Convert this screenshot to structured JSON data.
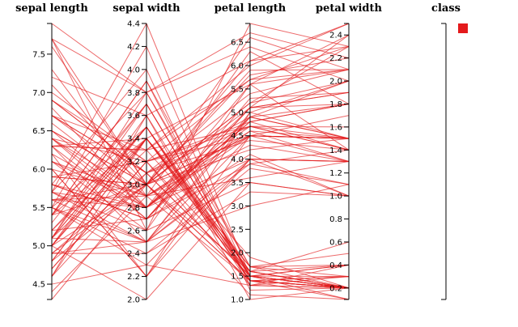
{
  "chart_data": {
    "type": "parallel_coordinates",
    "line_color": "#e41a1c",
    "dimensions": [
      {
        "name": "sepal length",
        "range": [
          4.3,
          7.9
        ],
        "ticks": [
          4.5,
          5.0,
          5.5,
          6.0,
          6.5,
          7.0,
          7.5
        ],
        "tick_labels": [
          "4.5",
          "5.0",
          "5.5",
          "6.0",
          "6.5",
          "7.0",
          "7.5"
        ]
      },
      {
        "name": "sepal width",
        "range": [
          2.0,
          4.4
        ],
        "ticks": [
          2.0,
          2.2,
          2.4,
          2.6,
          2.8,
          3.0,
          3.2,
          3.4,
          3.6,
          3.8,
          4.0,
          4.2,
          4.4
        ],
        "tick_labels": [
          "2.0",
          "2.2",
          "2.4",
          "2.6",
          "2.8",
          "3.0",
          "3.2",
          "3.4",
          "3.6",
          "3.8",
          "4.0",
          "4.2",
          "4.4"
        ]
      },
      {
        "name": "petal length",
        "range": [
          1.0,
          6.9
        ],
        "ticks": [
          1.0,
          1.5,
          2.0,
          2.5,
          3.0,
          3.5,
          4.0,
          4.5,
          5.0,
          5.5,
          6.0,
          6.5
        ],
        "tick_labels": [
          "1.0",
          "1.5",
          "2.0",
          "2.5",
          "3.0",
          "3.5",
          "4.0",
          "4.5",
          "5.0",
          "5.5",
          "6.0",
          "6.5"
        ]
      },
      {
        "name": "petal width",
        "range": [
          0.1,
          2.5
        ],
        "ticks": [
          0.2,
          0.4,
          0.6,
          0.8,
          1.0,
          1.2,
          1.4,
          1.6,
          1.8,
          2.0,
          2.2,
          2.4
        ],
        "tick_labels": [
          "0.2",
          "0.4",
          "0.6",
          "0.8",
          "1.0",
          "1.2",
          "1.4",
          "1.6",
          "1.8",
          "2.0",
          "2.2",
          "2.4"
        ]
      },
      {
        "name": "class",
        "range": [
          0,
          1
        ],
        "ticks": [],
        "tick_labels": []
      }
    ],
    "records": [
      [
        5.1,
        3.5,
        1.4,
        0.2
      ],
      [
        4.9,
        3.0,
        1.4,
        0.2
      ],
      [
        4.7,
        3.2,
        1.3,
        0.2
      ],
      [
        4.6,
        3.1,
        1.5,
        0.2
      ],
      [
        5.0,
        3.6,
        1.4,
        0.2
      ],
      [
        5.4,
        3.9,
        1.7,
        0.4
      ],
      [
        4.6,
        3.4,
        1.4,
        0.3
      ],
      [
        5.0,
        3.4,
        1.5,
        0.2
      ],
      [
        4.4,
        2.9,
        1.4,
        0.2
      ],
      [
        4.9,
        3.1,
        1.5,
        0.1
      ],
      [
        5.4,
        3.7,
        1.5,
        0.2
      ],
      [
        4.8,
        3.4,
        1.6,
        0.2
      ],
      [
        4.8,
        3.0,
        1.4,
        0.1
      ],
      [
        4.3,
        3.0,
        1.1,
        0.1
      ],
      [
        5.8,
        4.0,
        1.2,
        0.2
      ],
      [
        5.7,
        4.4,
        1.5,
        0.4
      ],
      [
        5.4,
        3.9,
        1.3,
        0.4
      ],
      [
        5.1,
        3.5,
        1.4,
        0.3
      ],
      [
        5.7,
        3.8,
        1.7,
        0.3
      ],
      [
        5.1,
        3.8,
        1.5,
        0.3
      ],
      [
        5.4,
        3.4,
        1.7,
        0.2
      ],
      [
        5.1,
        3.7,
        1.5,
        0.4
      ],
      [
        4.6,
        3.6,
        1.0,
        0.2
      ],
      [
        5.1,
        3.3,
        1.7,
        0.5
      ],
      [
        4.8,
        3.4,
        1.9,
        0.2
      ],
      [
        5.0,
        3.0,
        1.6,
        0.2
      ],
      [
        5.0,
        3.4,
        1.6,
        0.4
      ],
      [
        5.2,
        3.5,
        1.5,
        0.2
      ],
      [
        5.2,
        3.4,
        1.4,
        0.2
      ],
      [
        4.7,
        3.2,
        1.6,
        0.2
      ],
      [
        5.5,
        4.2,
        1.4,
        0.2
      ],
      [
        5.5,
        3.5,
        1.3,
        0.2
      ],
      [
        4.5,
        2.3,
        1.3,
        0.3
      ],
      [
        5.0,
        3.5,
        1.6,
        0.6
      ],
      [
        5.3,
        3.7,
        1.5,
        0.2
      ],
      [
        7.0,
        3.2,
        4.7,
        1.4
      ],
      [
        6.4,
        3.2,
        4.5,
        1.5
      ],
      [
        6.9,
        3.1,
        4.9,
        1.5
      ],
      [
        5.5,
        2.3,
        4.0,
        1.3
      ],
      [
        6.5,
        2.8,
        4.6,
        1.5
      ],
      [
        5.7,
        2.8,
        4.5,
        1.3
      ],
      [
        6.3,
        3.3,
        4.7,
        1.6
      ],
      [
        4.9,
        2.4,
        3.3,
        1.0
      ],
      [
        6.6,
        2.9,
        4.6,
        1.3
      ],
      [
        5.2,
        2.7,
        3.9,
        1.4
      ],
      [
        5.0,
        2.0,
        3.5,
        1.0
      ],
      [
        5.9,
        3.0,
        4.2,
        1.5
      ],
      [
        6.0,
        2.2,
        4.0,
        1.0
      ],
      [
        6.1,
        2.9,
        4.7,
        1.4
      ],
      [
        5.6,
        2.9,
        3.6,
        1.3
      ],
      [
        6.7,
        3.1,
        4.4,
        1.4
      ],
      [
        5.6,
        3.0,
        4.5,
        1.5
      ],
      [
        5.8,
        2.7,
        4.1,
        1.0
      ],
      [
        6.2,
        2.2,
        4.5,
        1.5
      ],
      [
        5.6,
        2.5,
        3.9,
        1.1
      ],
      [
        5.9,
        3.2,
        4.8,
        1.8
      ],
      [
        6.1,
        2.8,
        4.0,
        1.3
      ],
      [
        6.3,
        2.5,
        4.9,
        1.5
      ],
      [
        6.4,
        2.9,
        4.3,
        1.3
      ],
      [
        6.8,
        2.8,
        4.8,
        1.4
      ],
      [
        6.0,
        2.9,
        4.5,
        1.5
      ],
      [
        5.7,
        2.6,
        3.5,
        1.0
      ],
      [
        5.5,
        2.4,
        3.8,
        1.1
      ],
      [
        5.4,
        3.0,
        4.5,
        1.5
      ],
      [
        6.7,
        3.1,
        4.7,
        1.5
      ],
      [
        5.5,
        2.5,
        4.0,
        1.3
      ],
      [
        5.1,
        2.5,
        3.0,
        1.1
      ],
      [
        6.3,
        3.3,
        6.0,
        2.5
      ],
      [
        5.8,
        2.7,
        5.1,
        1.9
      ],
      [
        7.1,
        3.0,
        5.9,
        2.1
      ],
      [
        6.5,
        3.0,
        5.8,
        2.2
      ],
      [
        7.6,
        3.0,
        6.6,
        2.1
      ],
      [
        4.9,
        2.5,
        4.5,
        1.7
      ],
      [
        7.3,
        2.9,
        6.3,
        1.8
      ],
      [
        7.2,
        3.6,
        6.1,
        2.5
      ],
      [
        6.4,
        2.7,
        5.3,
        1.9
      ],
      [
        5.7,
        2.5,
        5.0,
        2.0
      ],
      [
        5.8,
        2.8,
        5.1,
        2.4
      ],
      [
        7.7,
        3.8,
        6.7,
        2.2
      ],
      [
        7.7,
        2.6,
        6.9,
        2.3
      ],
      [
        6.0,
        2.2,
        5.0,
        1.5
      ],
      [
        6.9,
        3.2,
        5.7,
        2.3
      ],
      [
        5.6,
        2.8,
        4.9,
        2.0
      ],
      [
        6.3,
        2.7,
        4.9,
        1.8
      ],
      [
        6.7,
        3.3,
        5.7,
        2.1
      ],
      [
        6.2,
        2.8,
        4.8,
        1.8
      ],
      [
        6.4,
        2.8,
        5.6,
        2.1
      ],
      [
        7.9,
        3.8,
        6.4,
        2.0
      ],
      [
        6.1,
        2.6,
        5.6,
        1.4
      ],
      [
        7.7,
        3.0,
        6.1,
        2.3
      ],
      [
        6.3,
        3.4,
        5.6,
        2.4
      ],
      [
        6.9,
        3.1,
        5.4,
        2.1
      ],
      [
        5.8,
        2.7,
        5.1,
        1.9
      ],
      [
        6.7,
        3.0,
        5.2,
        2.3
      ],
      [
        6.5,
        3.0,
        5.2,
        2.0
      ],
      [
        5.9,
        3.0,
        5.1,
        1.8
      ]
    ],
    "legend": {
      "swatch_color": "#e41a1c",
      "label": ""
    }
  }
}
